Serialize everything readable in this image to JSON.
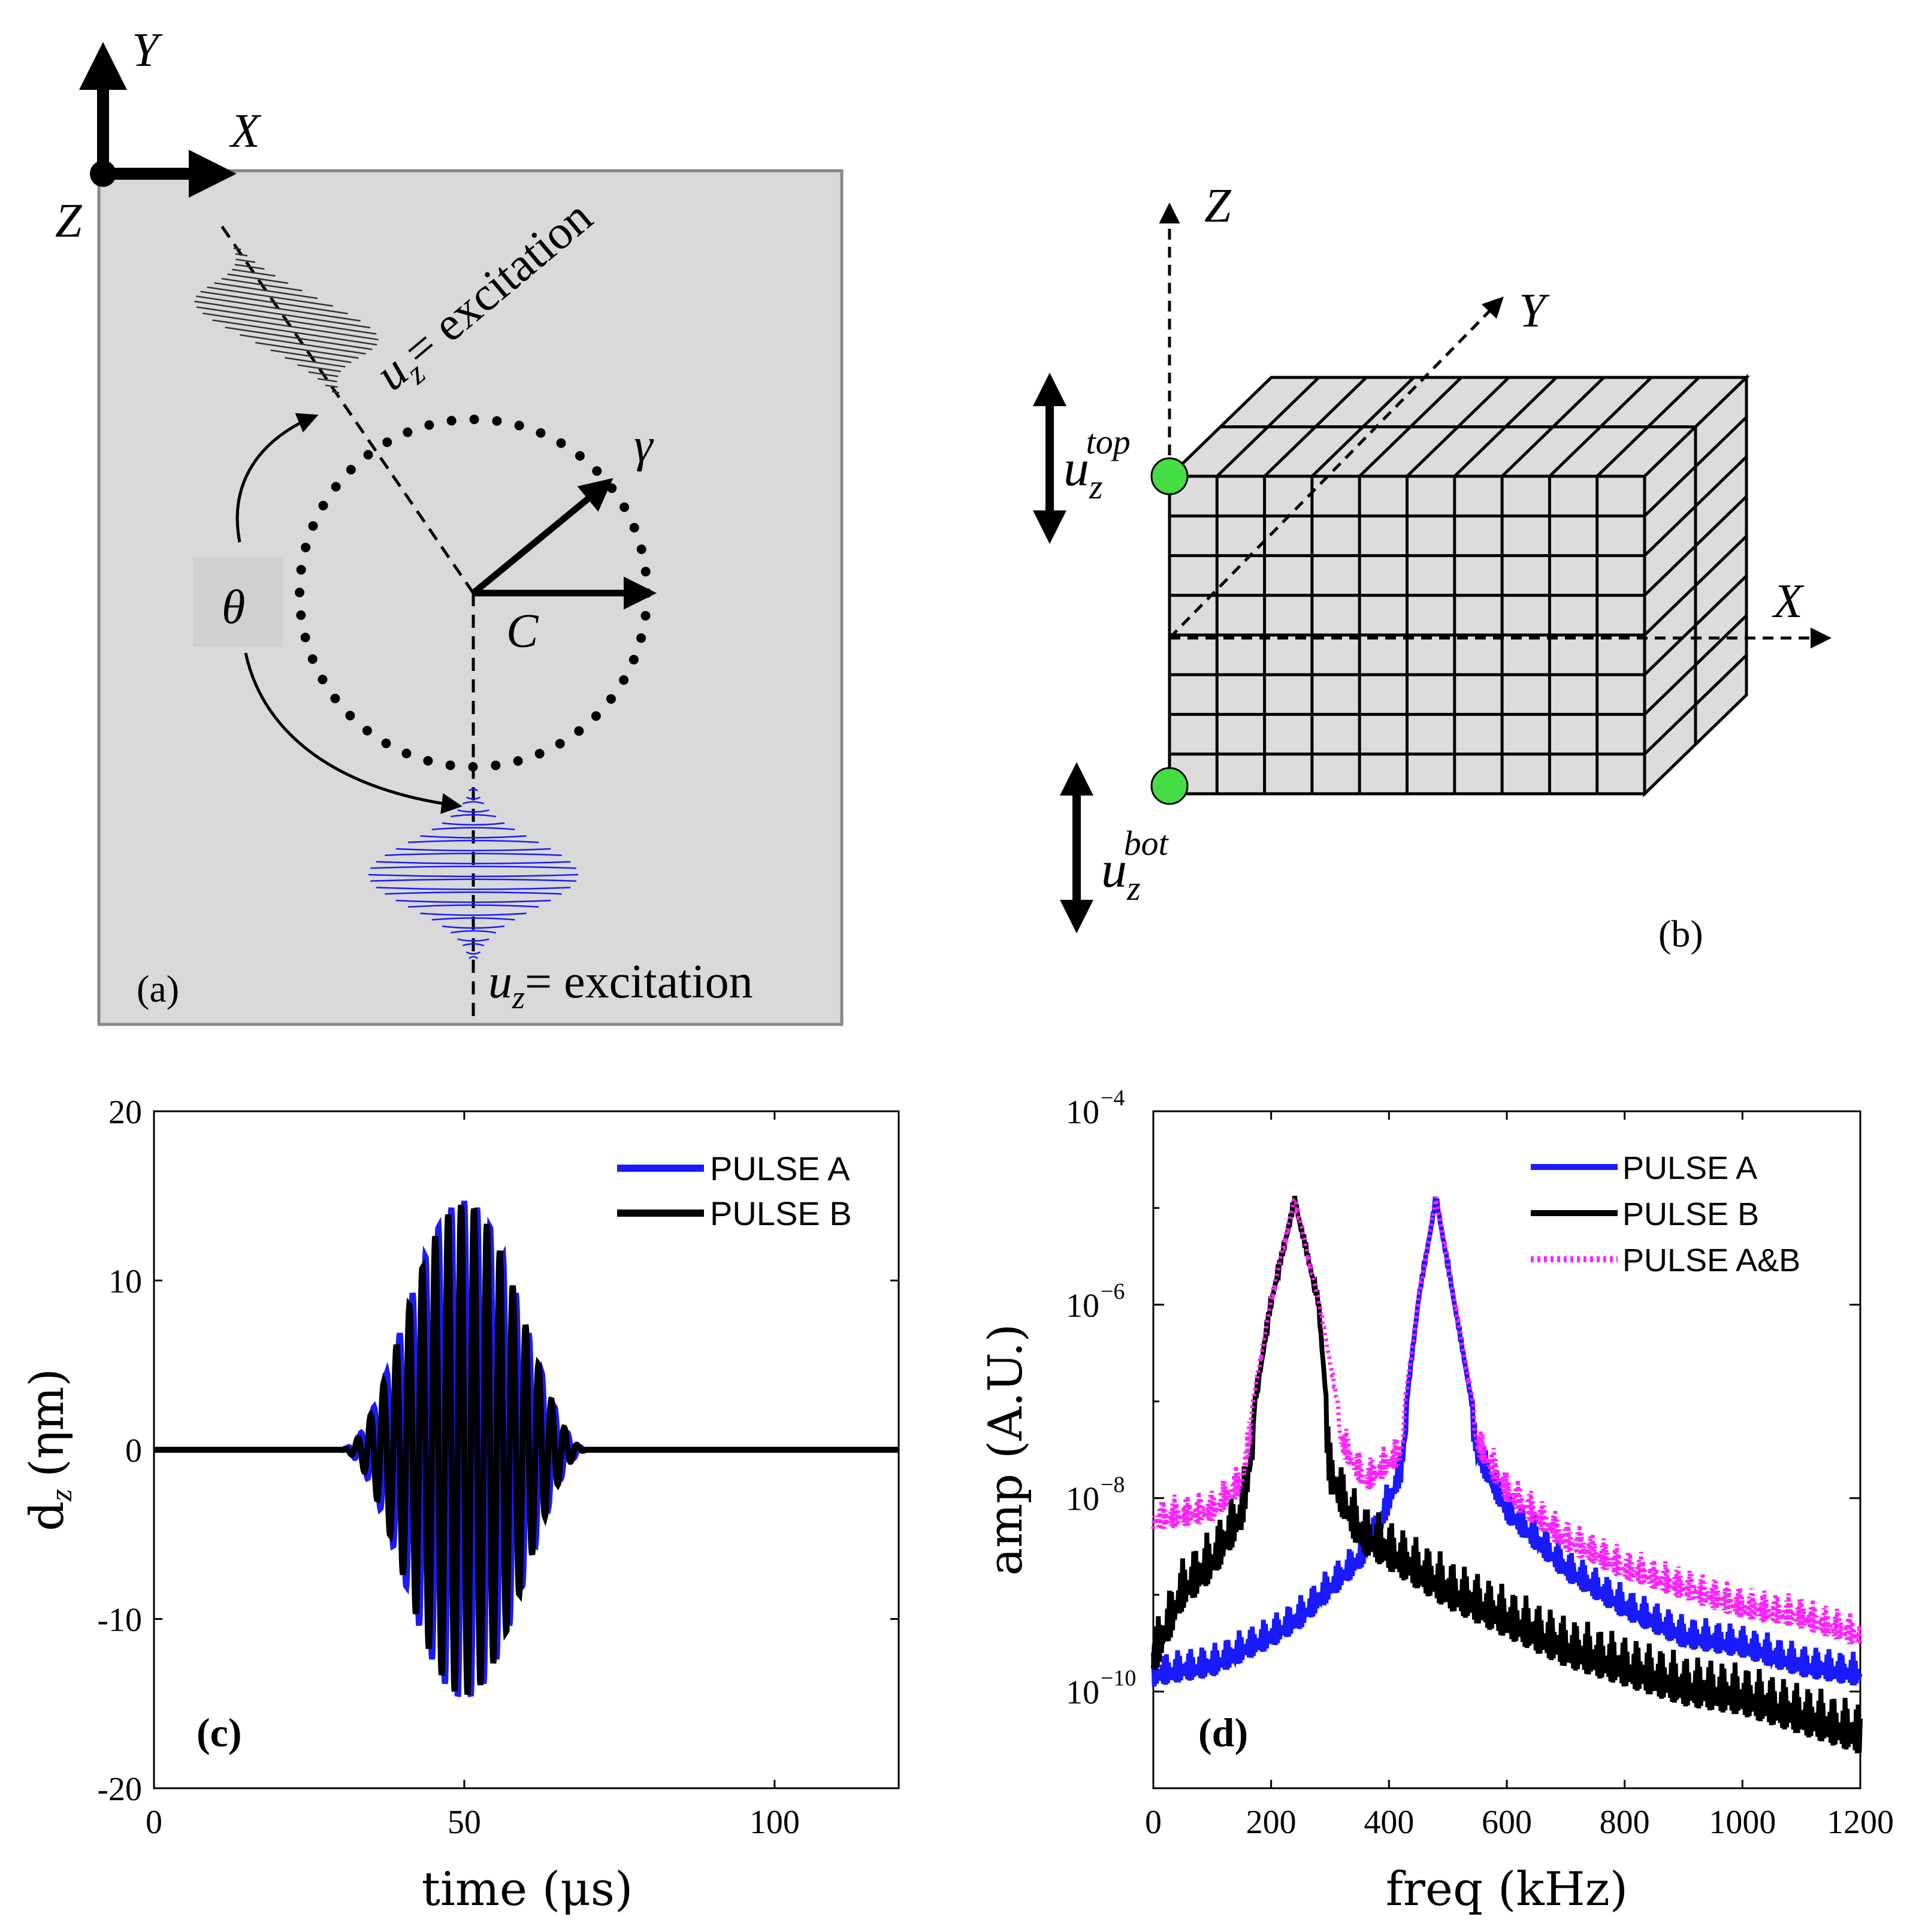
{
  "colors": {
    "panel_bg": "#d9d9d9",
    "pulse_a": "#1a1aff",
    "pulse_b": "#000000",
    "pulse_ab": "#ff22ff",
    "node": "#44dd44",
    "cube_face": "#dcdcdc"
  },
  "panel_a": {
    "tag": "(a)",
    "axis_y": "Y",
    "axis_x": "X",
    "axis_z": "Z",
    "excitation_top_var": "u",
    "excitation_top_sub": "z",
    "excitation_top_text": "= excitation",
    "excitation_bottom_var": "u",
    "excitation_bottom_sub": "z",
    "excitation_bottom_text": "= excitation",
    "gamma": "γ",
    "center_label": "C",
    "theta": "θ"
  },
  "panel_b": {
    "tag": "(b)",
    "axis_z": "Z",
    "axis_y": "Y",
    "axis_x": "X",
    "top_var": "u",
    "top_sub": "z",
    "top_sup": "top",
    "bot_var": "u",
    "bot_sub": "z",
    "bot_sup": "bot"
  },
  "chart_data": [
    {
      "panel": "(c)",
      "type": "line",
      "title": "",
      "xlabel": "time (μs)",
      "ylabel_main": "d",
      "ylabel_sub": "z",
      "ylabel_unit": "(ηm)",
      "xlim": [
        0,
        120
      ],
      "ylim": [
        -20,
        20
      ],
      "xticks": [
        0,
        50,
        100
      ],
      "yticks": [
        20,
        10,
        0,
        -10,
        -20
      ],
      "legend": [
        "PULSE A",
        "PULSE B"
      ],
      "series": [
        {
          "name": "PULSE A",
          "kind": "tone-burst",
          "center_us": 50,
          "half_width_us": 20,
          "frequency_khz": 480,
          "peak_amplitude": 14.7
        },
        {
          "name": "PULSE B",
          "kind": "tone-burst",
          "center_us": 50,
          "half_width_us": 20,
          "frequency_khz": 480,
          "phase_shift_deg": 90,
          "peak_amplitude": 14.5
        }
      ]
    },
    {
      "panel": "(d)",
      "type": "line",
      "yscale": "log",
      "title": "",
      "xlabel": "freq (kHz)",
      "ylabel": "amp (A.U.)",
      "xlim": [
        0,
        1200
      ],
      "ylim_exp": [
        -11,
        -4
      ],
      "xticks": [
        0,
        200,
        400,
        600,
        800,
        1000,
        1200
      ],
      "yticks_exp": [
        -4,
        -6,
        -8,
        -10
      ],
      "ytick_base": "10",
      "legend": [
        "PULSE A",
        "PULSE B",
        "PULSE A&B"
      ],
      "series": [
        {
          "name": "PULSE A",
          "x": [
            0,
            100,
            200,
            250,
            300,
            350,
            380,
            420,
            450,
            480,
            510,
            550,
            600,
            700,
            800,
            900,
            1000,
            1100,
            1200
          ],
          "y_log10": [
            -9.6,
            -9.5,
            -9.2,
            -9.0,
            -8.7,
            -8.4,
            -8.1,
            -7.5,
            -5.9,
            -4.85,
            -5.9,
            -7.3,
            -7.9,
            -8.5,
            -8.9,
            -9.2,
            -9.3,
            -9.5,
            -9.6
          ]
        },
        {
          "name": "PULSE B",
          "x": [
            0,
            50,
            100,
            150,
            200,
            240,
            280,
            300,
            350,
            400,
            500,
            600,
            700,
            800,
            900,
            1000,
            1100,
            1200
          ],
          "y_log10": [
            -9.3,
            -8.6,
            -8.3,
            -7.8,
            -5.9,
            -4.85,
            -5.9,
            -7.4,
            -8.0,
            -8.2,
            -8.6,
            -8.9,
            -9.2,
            -9.4,
            -9.6,
            -9.7,
            -9.9,
            -10.1
          ]
        },
        {
          "name": "PULSE A&B",
          "x": [
            0,
            100,
            150,
            200,
            240,
            280,
            320,
            360,
            420,
            450,
            480,
            510,
            550,
            600,
            700,
            800,
            900,
            1000,
            1100,
            1200
          ],
          "y_log10": [
            -8.0,
            -7.9,
            -7.6,
            -5.9,
            -4.85,
            -5.9,
            -7.2,
            -7.6,
            -7.3,
            -5.9,
            -4.85,
            -5.9,
            -7.2,
            -7.7,
            -8.2,
            -8.5,
            -8.7,
            -8.9,
            -9.0,
            -9.2
          ]
        }
      ]
    }
  ]
}
